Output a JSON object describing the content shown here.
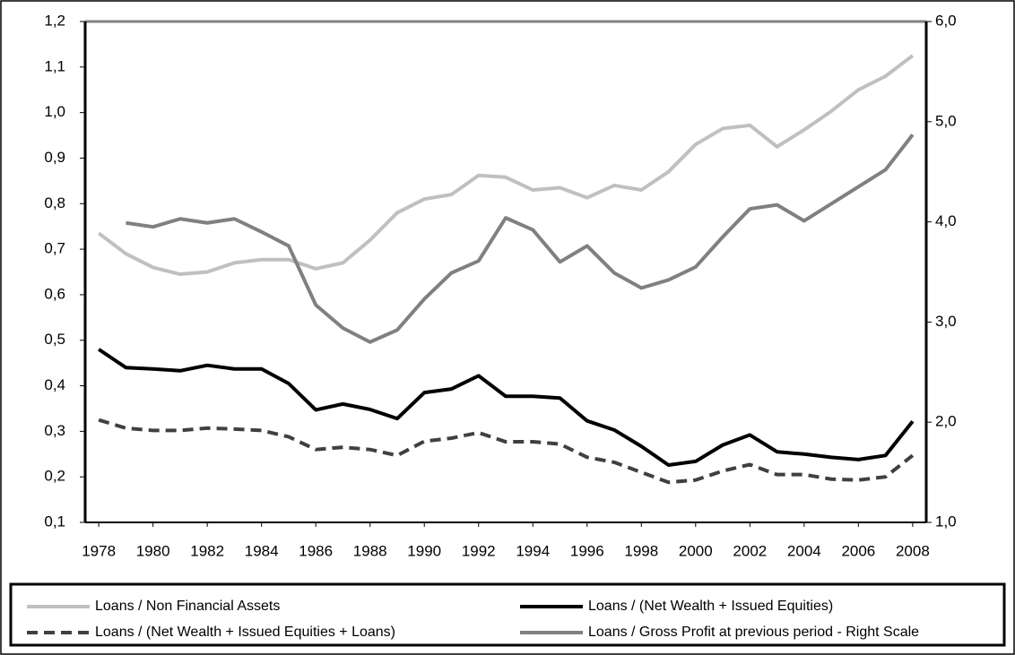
{
  "chart_data": {
    "type": "line",
    "x": [
      1978,
      1979,
      1980,
      1981,
      1982,
      1983,
      1984,
      1985,
      1986,
      1987,
      1988,
      1989,
      1990,
      1991,
      1992,
      1993,
      1994,
      1995,
      1996,
      1997,
      1998,
      1999,
      2000,
      2001,
      2002,
      2003,
      2004,
      2005,
      2006,
      2007,
      2008
    ],
    "xlim": [
      1977.5,
      2008.5
    ],
    "xticks": [
      1978,
      1980,
      1982,
      1984,
      1986,
      1988,
      1990,
      1992,
      1994,
      1996,
      1998,
      2000,
      2002,
      2004,
      2006,
      2008
    ],
    "ylim": [
      0.1,
      1.2
    ],
    "yticks": [
      {
        "value": 0.1,
        "label": "0,1"
      },
      {
        "value": 0.2,
        "label": "0,2"
      },
      {
        "value": 0.3,
        "label": "0,3"
      },
      {
        "value": 0.4,
        "label": "0,4"
      },
      {
        "value": 0.5,
        "label": "0,5"
      },
      {
        "value": 0.6,
        "label": "0,6"
      },
      {
        "value": 0.7,
        "label": "0,7"
      },
      {
        "value": 0.8,
        "label": "0,8"
      },
      {
        "value": 0.9,
        "label": "0,9"
      },
      {
        "value": 1.0,
        "label": "1,0"
      },
      {
        "value": 1.1,
        "label": "1,1"
      },
      {
        "value": 1.2,
        "label": "1,2"
      }
    ],
    "y2lim": [
      1.0,
      6.0
    ],
    "y2ticks": [
      {
        "value": 1.0,
        "label": "1,0"
      },
      {
        "value": 2.0,
        "label": "2,0"
      },
      {
        "value": 3.0,
        "label": "3,0"
      },
      {
        "value": 4.0,
        "label": "4,0"
      },
      {
        "value": 5.0,
        "label": "5,0"
      },
      {
        "value": 6.0,
        "label": "6,0"
      }
    ],
    "series": [
      {
        "name": "Loans / Non Financial Assets",
        "color": "#c0c0c0",
        "dashed": false,
        "values": [
          0.735,
          0.69,
          0.66,
          0.645,
          0.65,
          0.67,
          0.677,
          0.677,
          0.657,
          0.67,
          0.72,
          0.78,
          0.81,
          0.82,
          0.862,
          0.858,
          0.83,
          0.835,
          0.813,
          0.84,
          0.83,
          0.87,
          0.93,
          0.965,
          0.972,
          0.925,
          0.962,
          1.003,
          1.05,
          1.08,
          1.125
        ]
      },
      {
        "name": "Loans / (Net Wealth + Issued Equities)",
        "color": "#000000",
        "dashed": false,
        "values": [
          0.48,
          0.44,
          0.437,
          0.433,
          0.445,
          0.437,
          0.437,
          0.405,
          0.347,
          0.36,
          0.348,
          0.328,
          0.385,
          0.393,
          0.422,
          0.377,
          0.377,
          0.373,
          0.323,
          0.303,
          0.267,
          0.226,
          0.234,
          0.27,
          0.292,
          0.255,
          0.25,
          0.243,
          0.238,
          0.247,
          0.322
        ]
      },
      {
        "name": "Loans / (Net Wealth + Issued Equities + Loans)",
        "color": "#404040",
        "dashed": true,
        "values": [
          0.325,
          0.307,
          0.302,
          0.302,
          0.307,
          0.305,
          0.302,
          0.288,
          0.26,
          0.265,
          0.26,
          0.247,
          0.278,
          0.285,
          0.297,
          0.277,
          0.277,
          0.272,
          0.243,
          0.232,
          0.21,
          0.188,
          0.193,
          0.213,
          0.227,
          0.205,
          0.205,
          0.195,
          0.193,
          0.2,
          0.247
        ]
      },
      {
        "name": "Loans / Gross Profit at previous period - Right Scale",
        "color": "#808080",
        "dashed": false,
        "axis": "y2",
        "values": [
          null,
          3.99,
          3.95,
          4.03,
          3.99,
          4.03,
          3.9,
          3.76,
          3.17,
          2.94,
          2.8,
          2.92,
          3.23,
          3.49,
          3.61,
          4.04,
          3.92,
          3.6,
          3.76,
          3.49,
          3.34,
          3.42,
          3.55,
          3.85,
          4.13,
          4.17,
          4.01,
          4.18,
          4.35,
          4.52,
          4.87
        ]
      }
    ]
  }
}
